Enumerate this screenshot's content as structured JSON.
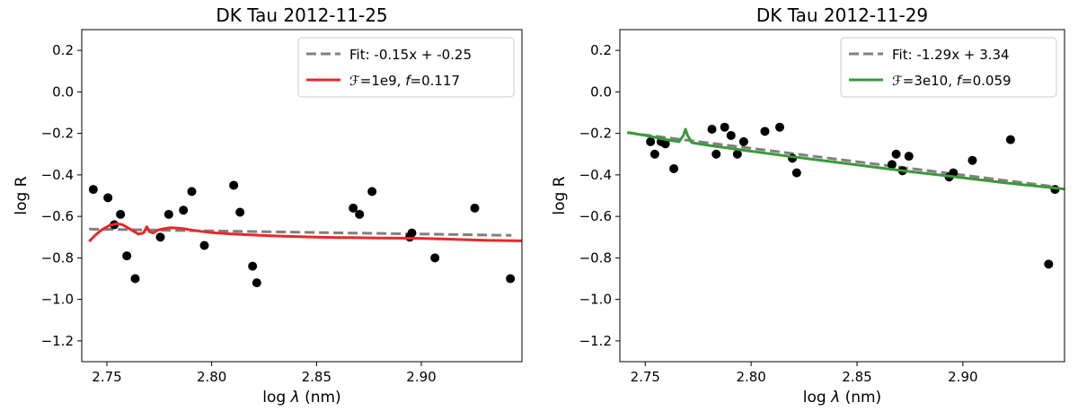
{
  "chart_data": [
    {
      "type": "scatter",
      "title": "DK Tau 2012-11-25",
      "xlabel_prefix": "log ",
      "xlabel_symbol": "λ",
      "xlabel_suffix": " (nm)",
      "ylabel": "log R",
      "xlim": [
        2.738,
        2.948
      ],
      "ylim": [
        -1.3,
        0.3
      ],
      "xticks": [
        2.75,
        2.8,
        2.85,
        2.9
      ],
      "xtick_labels": [
        "2.75",
        "2.80",
        "2.85",
        "2.90"
      ],
      "yticks": [
        0.2,
        0.0,
        -0.2,
        -0.4,
        -0.6,
        -0.8,
        -1.0,
        -1.2
      ],
      "ytick_labels": [
        "0.2",
        "0.0",
        "−0.2",
        "−0.4",
        "−0.6",
        "−0.8",
        "−1.0",
        "−1.2"
      ],
      "grid": false,
      "legend_position": "top-right",
      "points": {
        "color": "#000000",
        "x": [
          2.7435,
          2.7505,
          2.7535,
          2.7565,
          2.7595,
          2.7635,
          2.7755,
          2.7795,
          2.7865,
          2.7905,
          2.7965,
          2.8105,
          2.8135,
          2.8195,
          2.8215,
          2.8675,
          2.8705,
          2.8765,
          2.8945,
          2.8955,
          2.9065,
          2.9255,
          2.9425
        ],
        "y": [
          -0.47,
          -0.51,
          -0.64,
          -0.59,
          -0.79,
          -0.9,
          -0.7,
          -0.59,
          -0.57,
          -0.48,
          -0.74,
          -0.45,
          -0.58,
          -0.84,
          -0.92,
          -0.56,
          -0.59,
          -0.48,
          -0.7,
          -0.68,
          -0.8,
          -0.56,
          -0.9
        ]
      },
      "fit_line": {
        "label": "Fit: -0.15x + -0.25",
        "color": "#808080",
        "slope": -0.15,
        "intercept": -0.25,
        "x_range": [
          2.7415,
          2.943
        ]
      },
      "model": {
        "label_symbol": "ℱ",
        "label_text1": "=1e9, ",
        "label_italic": "f",
        "label_text2": "=0.117",
        "color": "#e8282b",
        "x": [
          2.7415,
          2.7445,
          2.7475,
          2.751,
          2.7545,
          2.7575,
          2.76,
          2.7625,
          2.765,
          2.7675,
          2.769,
          2.7705,
          2.772,
          2.7745,
          2.777,
          2.78,
          2.7835,
          2.787,
          2.79,
          2.795,
          2.8,
          2.81,
          2.82,
          2.83,
          2.84,
          2.85,
          2.86,
          2.87,
          2.88,
          2.89,
          2.9,
          2.91,
          2.92,
          2.93,
          2.948
        ],
        "y": [
          -0.72,
          -0.69,
          -0.665,
          -0.645,
          -0.635,
          -0.64,
          -0.655,
          -0.67,
          -0.685,
          -0.68,
          -0.65,
          -0.675,
          -0.68,
          -0.665,
          -0.66,
          -0.655,
          -0.656,
          -0.66,
          -0.665,
          -0.672,
          -0.678,
          -0.685,
          -0.69,
          -0.694,
          -0.697,
          -0.7,
          -0.702,
          -0.703,
          -0.704,
          -0.705,
          -0.706,
          -0.709,
          -0.712,
          -0.715,
          -0.718
        ]
      }
    },
    {
      "type": "scatter",
      "title": "DK Tau 2012-11-29",
      "xlabel_prefix": "log ",
      "xlabel_symbol": "λ",
      "xlabel_suffix": " (nm)",
      "ylabel": "log R",
      "xlim": [
        2.738,
        2.948
      ],
      "ylim": [
        -1.3,
        0.3
      ],
      "xticks": [
        2.75,
        2.8,
        2.85,
        2.9
      ],
      "xtick_labels": [
        "2.75",
        "2.80",
        "2.85",
        "2.90"
      ],
      "yticks": [
        0.2,
        0.0,
        -0.2,
        -0.4,
        -0.6,
        -0.8,
        -1.0,
        -1.2
      ],
      "ytick_labels": [
        "0.2",
        "0.0",
        "−0.2",
        "−0.4",
        "−0.6",
        "−0.8",
        "−1.0",
        "−1.2"
      ],
      "grid": false,
      "legend_position": "top-right",
      "points": {
        "color": "#000000",
        "x": [
          2.7525,
          2.7545,
          2.7575,
          2.7595,
          2.7635,
          2.7815,
          2.7835,
          2.7875,
          2.7905,
          2.7935,
          2.7965,
          2.8065,
          2.8135,
          2.8195,
          2.8215,
          2.8665,
          2.8685,
          2.8715,
          2.8745,
          2.8935,
          2.8955,
          2.9045,
          2.9225,
          2.9405,
          2.9435
        ],
        "y": [
          -0.24,
          -0.3,
          -0.24,
          -0.25,
          -0.37,
          -0.18,
          -0.3,
          -0.17,
          -0.21,
          -0.3,
          -0.24,
          -0.19,
          -0.17,
          -0.32,
          -0.39,
          -0.35,
          -0.3,
          -0.38,
          -0.31,
          -0.41,
          -0.39,
          -0.33,
          -0.23,
          -0.83,
          -0.47
        ]
      },
      "fit_line": {
        "label": "Fit: -1.29x + 3.34",
        "color": "#808080",
        "slope": -1.29,
        "intercept": 3.34,
        "x_range": [
          2.7415,
          2.943
        ]
      },
      "model": {
        "label_symbol": "ℱ",
        "label_text1": "=3e10, ",
        "label_italic": "f",
        "label_text2": "=0.059",
        "color": "#3a9a3a",
        "x": [
          2.7415,
          2.75,
          2.76,
          2.766,
          2.768,
          2.769,
          2.77,
          2.772,
          2.78,
          2.79,
          2.8,
          2.81,
          2.82,
          2.83,
          2.84,
          2.85,
          2.86,
          2.87,
          2.88,
          2.89,
          2.9,
          2.91,
          2.92,
          2.93,
          2.948
        ],
        "y": [
          -0.195,
          -0.21,
          -0.23,
          -0.24,
          -0.21,
          -0.18,
          -0.21,
          -0.245,
          -0.258,
          -0.272,
          -0.286,
          -0.3,
          -0.313,
          -0.326,
          -0.339,
          -0.352,
          -0.365,
          -0.378,
          -0.39,
          -0.402,
          -0.414,
          -0.426,
          -0.438,
          -0.449,
          -0.468
        ]
      }
    }
  ]
}
